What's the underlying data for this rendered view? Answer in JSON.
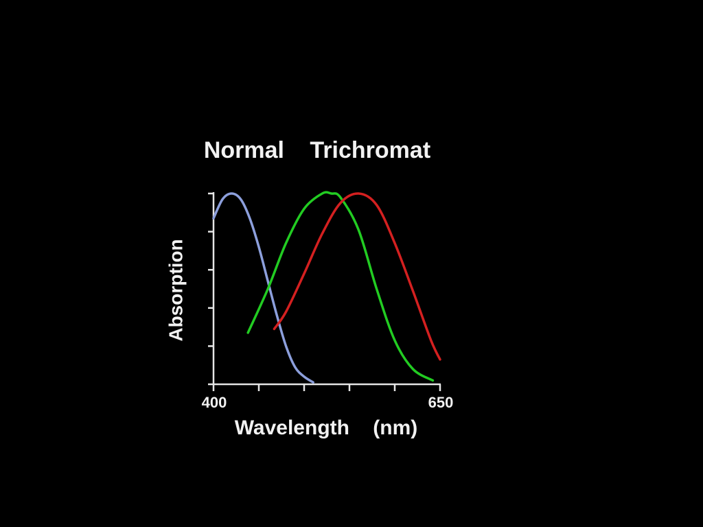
{
  "chart_data": {
    "type": "line",
    "title": "Normal Trichromat",
    "x_label": "Wavelength (nm)",
    "y_label": "Absorption",
    "xlim": [
      400,
      650
    ],
    "xticks": [
      400,
      {
        "value": 450,
        "label": null
      },
      {
        "value": 500,
        "label": null
      },
      {
        "value": 550,
        "label": null
      },
      {
        "value": 600,
        "label": null
      },
      650
    ],
    "ylim": [
      0,
      1
    ],
    "yticks": [
      {
        "value": 0,
        "label": null
      },
      {
        "value": 0.2,
        "label": null
      },
      {
        "value": 0.4,
        "label": null
      },
      {
        "value": 0.6,
        "label": null
      },
      {
        "value": 0.8,
        "label": null
      },
      {
        "value": 1,
        "label": null
      }
    ],
    "grid": false,
    "series": [
      {
        "color": "#8c9fdc",
        "x": [
          400,
          410,
          420,
          430,
          440,
          450,
          460,
          470,
          480,
          490,
          500,
          510
        ],
        "values": [
          0.87,
          0.97,
          1.0,
          0.97,
          0.87,
          0.72,
          0.54,
          0.36,
          0.2,
          0.09,
          0.04,
          0.01
        ]
      },
      {
        "color": "#22cc22",
        "x": [
          438,
          460,
          480,
          500,
          520,
          530,
          540,
          560,
          580,
          600,
          620,
          642
        ],
        "values": [
          0.27,
          0.5,
          0.74,
          0.92,
          1.0,
          1.0,
          0.98,
          0.81,
          0.5,
          0.23,
          0.08,
          0.02
        ]
      },
      {
        "color": "#d42020",
        "x": [
          467,
          480,
          500,
          520,
          540,
          560,
          580,
          600,
          620,
          640,
          650
        ],
        "values": [
          0.29,
          0.38,
          0.58,
          0.79,
          0.95,
          1.0,
          0.94,
          0.74,
          0.49,
          0.23,
          0.13
        ]
      }
    ]
  }
}
